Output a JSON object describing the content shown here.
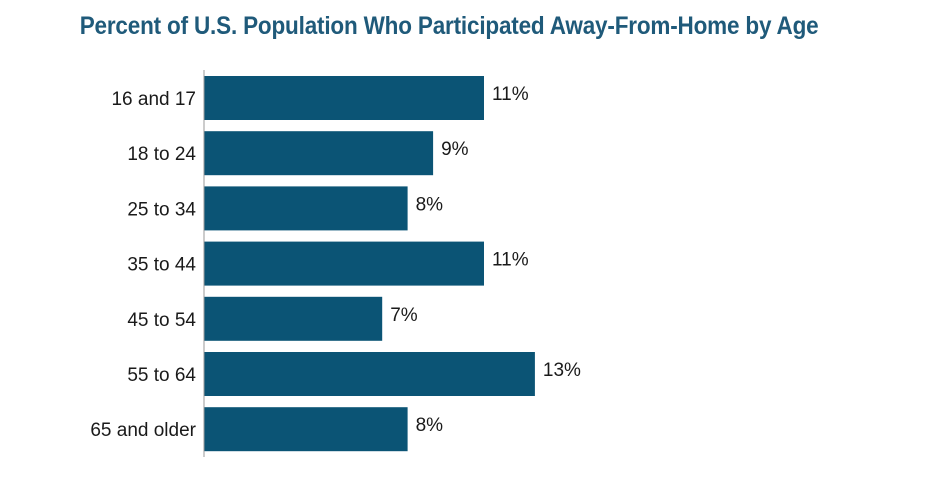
{
  "colors": {
    "title": "#1f5a7a",
    "bar": "#0b5475",
    "axis": "#9a9a9a"
  },
  "chart_data": {
    "type": "bar",
    "orientation": "horizontal",
    "title": "Percent of U.S. Population Who Participated Away-From-Home by Age",
    "xlabel": "",
    "ylabel": "",
    "categories": [
      "16 and 17",
      "18 to 24",
      "25 to 34",
      "35 to 44",
      "45 to 54",
      "55 to 64",
      "65 and older"
    ],
    "values": [
      11,
      9,
      8,
      11,
      7,
      13,
      8
    ],
    "value_labels": [
      "11%",
      "9%",
      "8%",
      "11%",
      "7%",
      "13%",
      "8%"
    ],
    "xlim": [
      0,
      30
    ],
    "grid": false,
    "legend": "none"
  }
}
